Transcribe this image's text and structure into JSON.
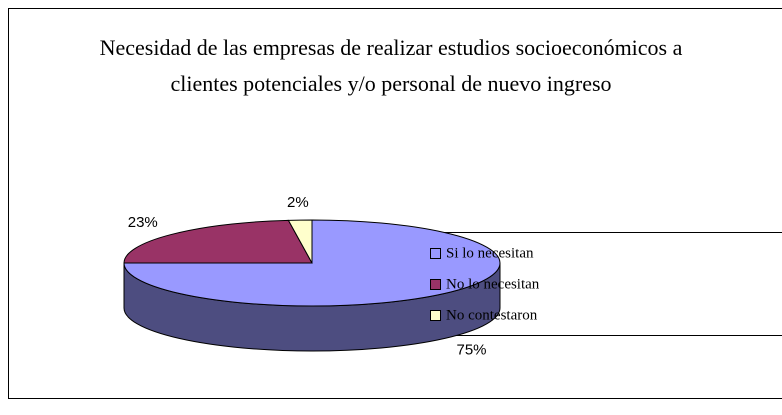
{
  "chart_data": {
    "type": "pie3d",
    "title": "Necesidad de las empresas de realizar estudios socioeconómicos a clientes potenciales y/o personal de nuevo ingreso",
    "categories": [
      "Si lo necesitan",
      "No lo necesitan",
      "No contestaron"
    ],
    "values": [
      75,
      23,
      2
    ],
    "value_labels": [
      "75%",
      "23%",
      "2%"
    ],
    "colors": [
      "#9999ff",
      "#993366",
      "#ffffcc"
    ],
    "legend": "right"
  }
}
